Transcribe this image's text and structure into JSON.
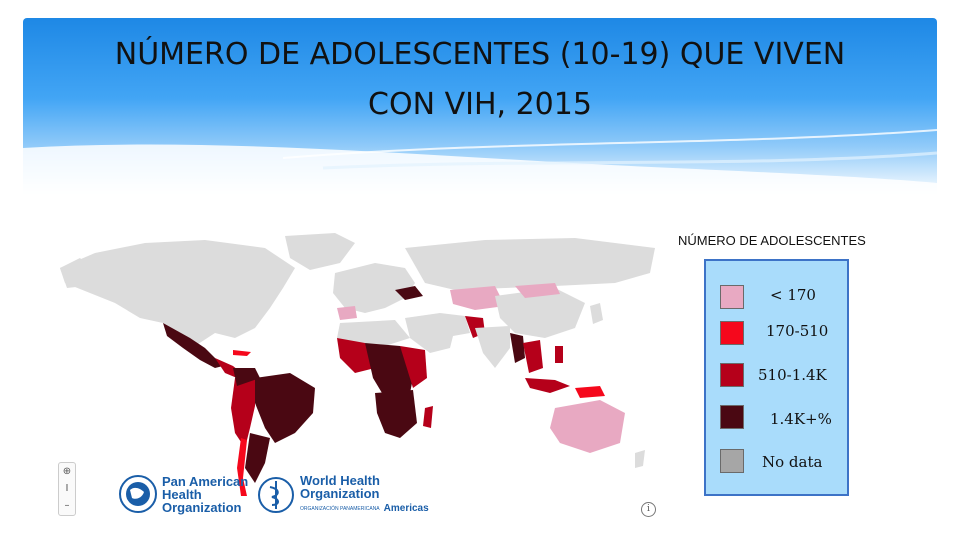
{
  "title": {
    "line1": "NÚMERO DE ADOLESCENTES (10-19)  QUE VIVEN",
    "line2": "CON VIH, 2015"
  },
  "legend": {
    "title": "NÚMERO DE ADOLESCENTES",
    "items": [
      {
        "label": "< 170",
        "color": "#e8a9c2"
      },
      {
        "label": "170-510",
        "color": "#f5081c"
      },
      {
        "label": "510-1.4K",
        "color": "#b5001a"
      },
      {
        "label": "1.4K+%",
        "color": "#4a0812"
      },
      {
        "label": "No data",
        "color": "#a6a6a6"
      }
    ]
  },
  "map": {
    "controls": {
      "home": "⊕",
      "zoom_in": "I",
      "zoom_out": "–"
    },
    "info": "i",
    "colors": {
      "no_data_land": "#dcdcdc",
      "ocean": "#ffffff"
    }
  },
  "logos": {
    "paho": {
      "line1": "Pan American",
      "line2": "Health",
      "line3": "Organization"
    },
    "who": {
      "line1": "World Health",
      "line2": "Organization",
      "line3": "Americas",
      "line4": "ORGANIZACIÓN PANAMERICANA"
    }
  }
}
